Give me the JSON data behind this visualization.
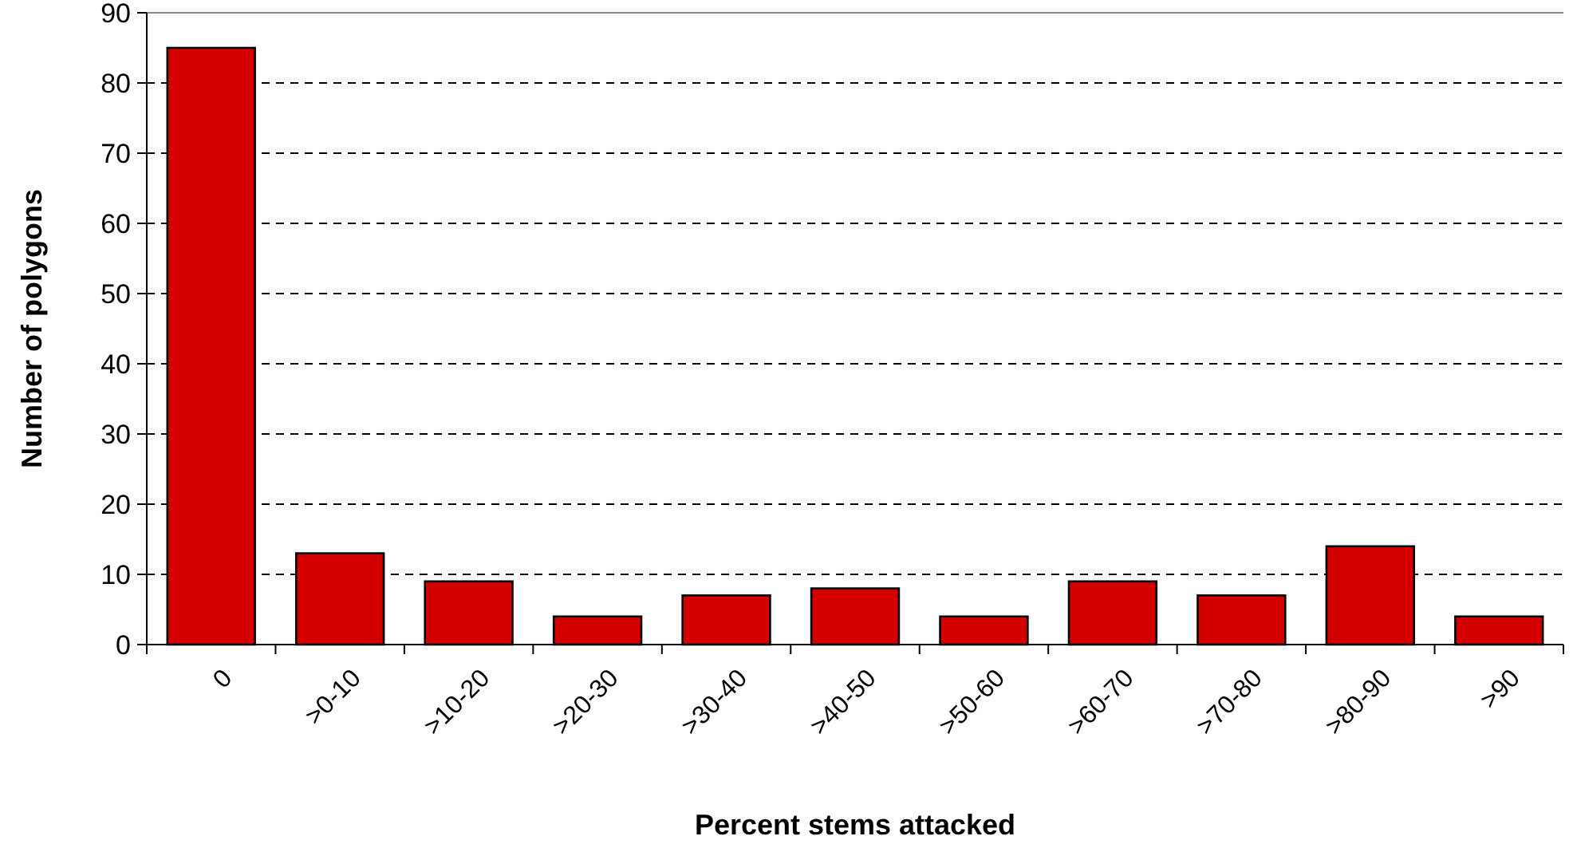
{
  "chart_data": {
    "type": "bar",
    "xlabel": "Percent stems attacked",
    "ylabel": "Number of polygons",
    "categories": [
      "0",
      ">0-10",
      ">10-20",
      ">20-30",
      ">30-40",
      ">40-50",
      ">50-60",
      ">60-70",
      ">70-80",
      ">80-90",
      ">90"
    ],
    "values": [
      85,
      13,
      9,
      4,
      7,
      8,
      4,
      9,
      7,
      14,
      4
    ],
    "color": "#d40000",
    "ylim": [
      0,
      90
    ],
    "yticks": [
      0,
      10,
      20,
      30,
      40,
      50,
      60,
      70,
      80,
      90
    ],
    "grid": "y"
  }
}
